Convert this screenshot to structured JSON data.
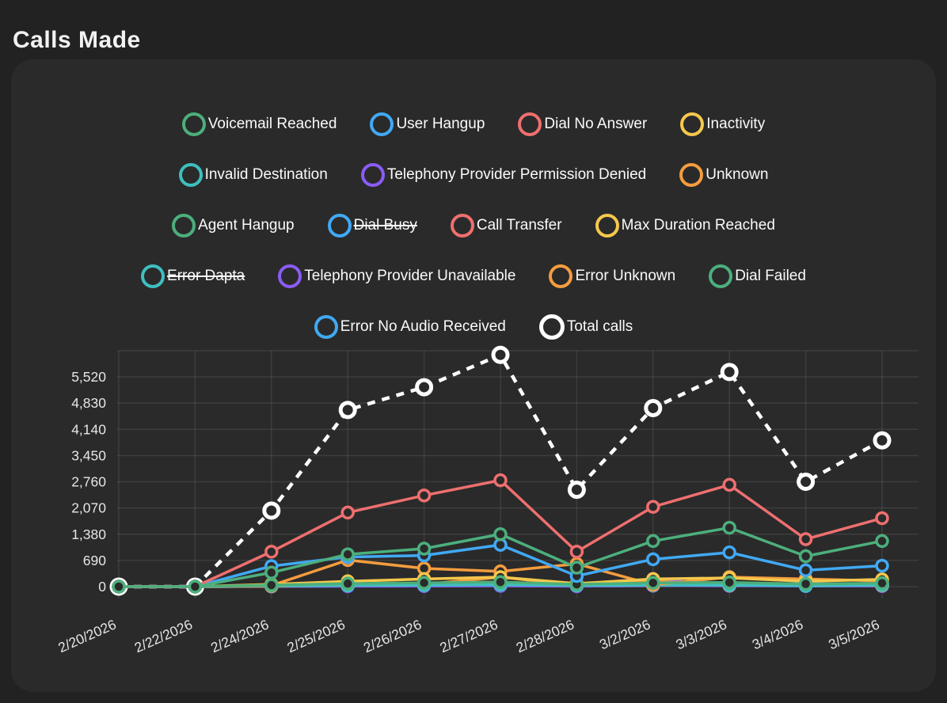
{
  "page": {
    "title": "Calls Made"
  },
  "chart_data": {
    "type": "line",
    "x_labels": [
      "2/20/2026",
      "2/22/2026",
      "2/24/2026",
      "2/25/2026",
      "2/26/2026",
      "2/27/2026",
      "2/28/2026",
      "3/2/2026",
      "3/3/2026",
      "3/4/2026",
      "3/5/2026"
    ],
    "y_tick_labels": [
      "0",
      "690",
      "1,380",
      "2,070",
      "2,760",
      "3,450",
      "4,140",
      "4,830",
      "5,520"
    ],
    "y_step": 690,
    "ylim": [
      0,
      6210
    ],
    "grid": true,
    "legend_position": "top",
    "legend_rows": [
      [
        0,
        1,
        2,
        3
      ],
      [
        4,
        5,
        6
      ],
      [
        7,
        8,
        9,
        10
      ],
      [
        11,
        12,
        13,
        14
      ],
      [
        15,
        16
      ]
    ],
    "series": [
      {
        "name": "Voicemail Reached",
        "color": "#4CAF7D",
        "hidden": false,
        "dashed": false,
        "emphasis": false,
        "z": 14,
        "values": [
          0,
          0,
          370,
          850,
          1000,
          1380,
          500,
          1200,
          1550,
          800,
          1200
        ]
      },
      {
        "name": "User Hangup",
        "color": "#41A9F4",
        "hidden": false,
        "dashed": false,
        "emphasis": false,
        "z": 12,
        "values": [
          0,
          0,
          540,
          780,
          820,
          1100,
          280,
          720,
          900,
          430,
          550
        ]
      },
      {
        "name": "Dial No Answer",
        "color": "#EF6F6F",
        "hidden": false,
        "dashed": false,
        "emphasis": false,
        "z": 13,
        "values": [
          0,
          0,
          920,
          1950,
          2400,
          2800,
          920,
          2100,
          2680,
          1250,
          1800
        ]
      },
      {
        "name": "Inactivity",
        "color": "#F5C84C",
        "hidden": false,
        "dashed": false,
        "emphasis": false,
        "z": 10,
        "values": [
          0,
          0,
          60,
          140,
          200,
          250,
          80,
          200,
          230,
          140,
          190
        ]
      },
      {
        "name": "Invalid Destination",
        "color": "#3FBFBF",
        "hidden": false,
        "dashed": false,
        "emphasis": false,
        "z": 8,
        "values": [
          0,
          0,
          20,
          30,
          40,
          50,
          30,
          40,
          40,
          30,
          40
        ]
      },
      {
        "name": "Telephony Provider Permission Denied",
        "color": "#8B5CF6",
        "hidden": false,
        "dashed": false,
        "emphasis": false,
        "z": 5,
        "values": [
          0,
          0,
          5,
          10,
          15,
          20,
          10,
          30,
          20,
          30,
          15
        ]
      },
      {
        "name": "Unknown",
        "color": "#F49D3F",
        "hidden": false,
        "dashed": false,
        "emphasis": false,
        "z": 9,
        "values": [
          0,
          0,
          30,
          700,
          480,
          400,
          600,
          50,
          250,
          200,
          150
        ]
      },
      {
        "name": "Agent Hangup",
        "color": "#4CAF7D",
        "hidden": false,
        "dashed": false,
        "emphasis": false,
        "z": 11,
        "values": [
          0,
          0,
          40,
          80,
          100,
          120,
          60,
          100,
          110,
          70,
          90
        ]
      },
      {
        "name": "Dial Busy",
        "color": "#41A9F4",
        "hidden": true,
        "dashed": false,
        "emphasis": false,
        "z": 1,
        "values": []
      },
      {
        "name": "Call Transfer",
        "color": "#EF6F6F",
        "hidden": false,
        "dashed": false,
        "emphasis": false,
        "z": 1,
        "values": [
          0,
          0,
          10,
          20,
          25,
          30,
          15,
          25,
          30,
          20,
          25
        ]
      },
      {
        "name": "Max Duration Reached",
        "color": "#F5C84C",
        "hidden": false,
        "dashed": false,
        "emphasis": false,
        "z": 4,
        "values": [
          0,
          0,
          20,
          60,
          90,
          120,
          40,
          100,
          90,
          60,
          80
        ]
      },
      {
        "name": "Error Dapta",
        "color": "#3FBFBF",
        "hidden": true,
        "dashed": false,
        "emphasis": false,
        "z": 2,
        "values": []
      },
      {
        "name": "Telephony Provider Unavailable",
        "color": "#8B5CF6",
        "hidden": false,
        "dashed": false,
        "emphasis": false,
        "z": 6,
        "values": [
          0,
          0,
          10,
          20,
          20,
          30,
          20,
          200,
          30,
          90,
          20
        ]
      },
      {
        "name": "Error Unknown",
        "color": "#F49D3F",
        "hidden": false,
        "dashed": false,
        "emphasis": false,
        "z": 7,
        "values": [
          0,
          0,
          10,
          40,
          60,
          250,
          40,
          150,
          30,
          60,
          30
        ]
      },
      {
        "name": "Dial Failed",
        "color": "#4CAF7D",
        "hidden": false,
        "dashed": false,
        "emphasis": false,
        "z": 3,
        "values": [
          0,
          0,
          15,
          30,
          40,
          60,
          30,
          50,
          50,
          40,
          50
        ]
      },
      {
        "name": "Error No Audio Received",
        "color": "#41A9F4",
        "hidden": false,
        "dashed": false,
        "emphasis": false,
        "z": 2,
        "values": [
          0,
          0,
          10,
          15,
          20,
          25,
          15,
          25,
          25,
          15,
          20
        ]
      },
      {
        "name": "Total calls",
        "color": "#FFFFFF",
        "hidden": false,
        "dashed": true,
        "emphasis": true,
        "z": 0,
        "values": [
          0,
          0,
          2000,
          4650,
          5250,
          6100,
          2550,
          4700,
          5650,
          2760,
          3850
        ]
      }
    ]
  }
}
